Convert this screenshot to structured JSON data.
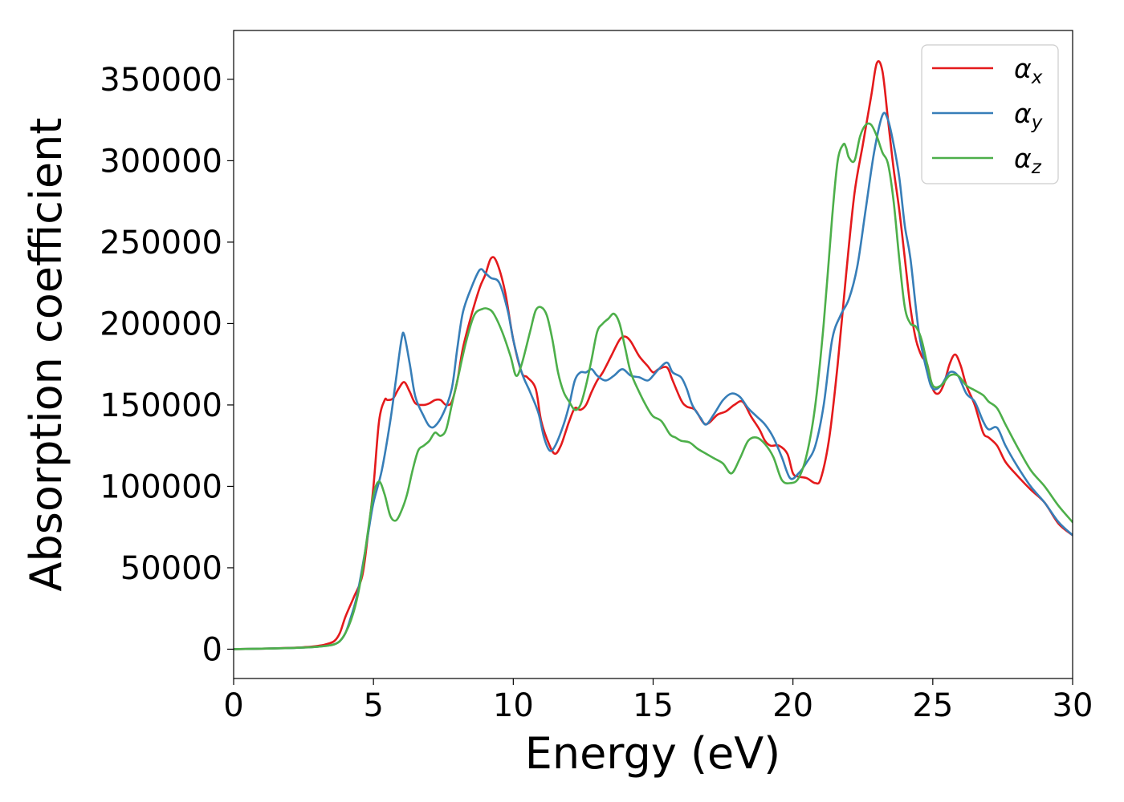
{
  "chart_data": {
    "type": "line",
    "xlabel": "Energy (eV)",
    "ylabel": "Absorption coefficient",
    "xlim": [
      0,
      30
    ],
    "ylim": [
      -18000,
      380000
    ],
    "xticks": [
      0,
      5,
      10,
      15,
      20,
      25,
      30
    ],
    "yticks": [
      0,
      50000,
      100000,
      150000,
      200000,
      250000,
      300000,
      350000
    ],
    "grid": false,
    "legend_position": "top-right",
    "series": [
      {
        "name": "α_x",
        "legend_base": "α",
        "legend_sub": "x",
        "color": "#e41a1c",
        "x": [
          0,
          1,
          2,
          2.5,
          3,
          3.3,
          3.6,
          3.8,
          4.0,
          4.3,
          4.6,
          4.8,
          5.0,
          5.2,
          5.4,
          5.5,
          5.7,
          5.9,
          6.1,
          6.3,
          6.5,
          6.8,
          7.0,
          7.2,
          7.4,
          7.6,
          7.8,
          8.0,
          8.2,
          8.5,
          8.8,
          9.0,
          9.2,
          9.4,
          9.7,
          10.0,
          10.3,
          10.5,
          10.8,
          11.0,
          11.3,
          11.5,
          11.7,
          11.9,
          12.0,
          12.2,
          12.4,
          12.6,
          12.8,
          13.0,
          13.2,
          13.5,
          13.8,
          14.0,
          14.2,
          14.5,
          14.8,
          15.0,
          15.2,
          15.5,
          15.7,
          16.0,
          16.2,
          16.5,
          16.8,
          17.0,
          17.3,
          17.6,
          17.9,
          18.2,
          18.5,
          18.8,
          19.0,
          19.2,
          19.5,
          19.8,
          20.0,
          20.2,
          20.5,
          20.8,
          21.0,
          21.3,
          21.6,
          21.9,
          22.2,
          22.5,
          22.8,
          23.0,
          23.2,
          23.4,
          23.6,
          23.8,
          24.0,
          24.2,
          24.4,
          24.6,
          24.8,
          25.0,
          25.2,
          25.4,
          25.6,
          25.8,
          26.0,
          26.2,
          26.5,
          26.8,
          27.0,
          27.3,
          27.6,
          28.0,
          28.5,
          29.0,
          29.5,
          30.0
        ],
        "values": [
          0,
          300,
          800,
          1200,
          2000,
          3000,
          5000,
          10000,
          20000,
          32000,
          45000,
          70000,
          100000,
          140000,
          153000,
          153000,
          154000,
          160000,
          164000,
          158000,
          151000,
          150000,
          151000,
          153000,
          153000,
          150000,
          152000,
          165000,
          185000,
          205000,
          222000,
          230000,
          240000,
          238000,
          220000,
          190000,
          170000,
          167000,
          160000,
          140000,
          125000,
          120000,
          125000,
          135000,
          140000,
          148000,
          147000,
          150000,
          158000,
          165000,
          170000,
          180000,
          190000,
          192000,
          189000,
          180000,
          174000,
          170000,
          172000,
          173000,
          165000,
          153000,
          149000,
          147000,
          139000,
          139000,
          144000,
          146000,
          150000,
          152000,
          143000,
          135000,
          128000,
          125000,
          125000,
          120000,
          108000,
          106000,
          105000,
          102000,
          105000,
          130000,
          175000,
          230000,
          280000,
          310000,
          340000,
          360000,
          355000,
          325000,
          295000,
          270000,
          240000,
          210000,
          190000,
          180000,
          175000,
          160000,
          157000,
          163000,
          175000,
          181000,
          174000,
          162000,
          150000,
          133000,
          130000,
          125000,
          115000,
          107000,
          98000,
          90000,
          77000,
          70000
        ]
      },
      {
        "name": "α_y",
        "legend_base": "α",
        "legend_sub": "y",
        "color": "#377eb8",
        "x": [
          0,
          1,
          2,
          2.5,
          3,
          3.3,
          3.6,
          3.8,
          4.0,
          4.2,
          4.4,
          4.6,
          4.8,
          5.0,
          5.3,
          5.6,
          5.8,
          6.0,
          6.1,
          6.3,
          6.5,
          6.8,
          7.0,
          7.2,
          7.5,
          7.8,
          8.0,
          8.2,
          8.5,
          8.8,
          9.0,
          9.2,
          9.5,
          9.8,
          10.0,
          10.3,
          10.6,
          10.9,
          11.1,
          11.3,
          11.5,
          11.8,
          12.0,
          12.2,
          12.4,
          12.6,
          12.8,
          13.0,
          13.3,
          13.6,
          13.9,
          14.2,
          14.5,
          14.8,
          15.0,
          15.2,
          15.5,
          15.7,
          16.0,
          16.2,
          16.4,
          16.7,
          16.9,
          17.2,
          17.5,
          17.8,
          18.1,
          18.4,
          18.7,
          19.0,
          19.3,
          19.6,
          19.9,
          20.2,
          20.5,
          20.8,
          21.1,
          21.4,
          21.7,
          22.0,
          22.3,
          22.6,
          22.9,
          23.2,
          23.4,
          23.6,
          23.8,
          24.0,
          24.2,
          24.5,
          24.8,
          25.0,
          25.3,
          25.6,
          25.9,
          26.2,
          26.5,
          26.8,
          27.0,
          27.3,
          27.6,
          28.0,
          28.5,
          29.0,
          29.5,
          30.0
        ],
        "values": [
          0,
          300,
          700,
          1000,
          1500,
          2000,
          3000,
          5000,
          10000,
          20000,
          32000,
          50000,
          70000,
          90000,
          110000,
          140000,
          165000,
          190000,
          193000,
          175000,
          155000,
          143000,
          137000,
          137000,
          145000,
          160000,
          185000,
          207000,
          222000,
          233000,
          231000,
          228000,
          225000,
          208000,
          190000,
          170000,
          158000,
          145000,
          130000,
          122000,
          125000,
          138000,
          150000,
          165000,
          170000,
          170000,
          172000,
          168000,
          165000,
          168000,
          172000,
          168000,
          167000,
          165000,
          168000,
          172000,
          176000,
          170000,
          167000,
          160000,
          150000,
          142000,
          138000,
          145000,
          153000,
          157000,
          155000,
          148000,
          143000,
          138000,
          130000,
          118000,
          105000,
          108000,
          115000,
          125000,
          150000,
          190000,
          205000,
          215000,
          235000,
          270000,
          305000,
          328000,
          325000,
          310000,
          290000,
          260000,
          240000,
          195000,
          170000,
          160000,
          162000,
          170000,
          168000,
          157000,
          152000,
          140000,
          135000,
          136000,
          125000,
          113000,
          100000,
          90000,
          78000,
          70000
        ]
      },
      {
        "name": "α_z",
        "legend_base": "α",
        "legend_sub": "z",
        "color": "#4daf4a",
        "x": [
          0,
          1,
          2,
          2.5,
          3,
          3.3,
          3.6,
          3.8,
          4.0,
          4.2,
          4.4,
          4.6,
          4.8,
          5.0,
          5.2,
          5.4,
          5.6,
          5.8,
          6.0,
          6.2,
          6.4,
          6.6,
          6.8,
          7.0,
          7.2,
          7.4,
          7.6,
          7.8,
          8.0,
          8.3,
          8.6,
          8.9,
          9.1,
          9.3,
          9.6,
          9.9,
          10.1,
          10.3,
          10.6,
          10.8,
          11.0,
          11.2,
          11.4,
          11.6,
          11.8,
          12.0,
          12.2,
          12.4,
          12.6,
          12.8,
          13.0,
          13.2,
          13.4,
          13.6,
          13.8,
          14.0,
          14.2,
          14.5,
          14.8,
          15.0,
          15.3,
          15.6,
          15.8,
          16.0,
          16.3,
          16.6,
          16.9,
          17.2,
          17.5,
          17.8,
          18.1,
          18.4,
          18.7,
          19.0,
          19.3,
          19.6,
          19.9,
          20.2,
          20.5,
          20.8,
          21.1,
          21.4,
          21.6,
          21.8,
          21.9,
          22.0,
          22.2,
          22.4,
          22.6,
          22.8,
          23.0,
          23.2,
          23.4,
          23.6,
          23.8,
          24.0,
          24.2,
          24.4,
          24.6,
          24.8,
          25.0,
          25.3,
          25.6,
          25.9,
          26.2,
          26.5,
          26.8,
          27.0,
          27.3,
          27.6,
          28.0,
          28.5,
          29.0,
          29.5,
          30.0
        ],
        "values": [
          0,
          300,
          700,
          1000,
          1500,
          2000,
          3000,
          5000,
          10000,
          18000,
          30000,
          48000,
          72000,
          95000,
          103000,
          95000,
          82000,
          79000,
          85000,
          95000,
          110000,
          122000,
          125000,
          128000,
          133000,
          131000,
          135000,
          150000,
          165000,
          188000,
          205000,
          209000,
          209000,
          206000,
          195000,
          180000,
          168000,
          175000,
          195000,
          208000,
          210000,
          205000,
          190000,
          170000,
          158000,
          152000,
          147000,
          150000,
          162000,
          178000,
          195000,
          200000,
          203000,
          206000,
          200000,
          185000,
          170000,
          158000,
          148000,
          143000,
          140000,
          132000,
          130000,
          128000,
          127000,
          123000,
          120000,
          117000,
          114000,
          108000,
          117000,
          128000,
          130000,
          126000,
          118000,
          104000,
          102000,
          105000,
          120000,
          150000,
          200000,
          265000,
          300000,
          310000,
          308000,
          302000,
          300000,
          315000,
          322000,
          322000,
          315000,
          305000,
          298000,
          275000,
          240000,
          210000,
          200000,
          198000,
          190000,
          175000,
          162000,
          162000,
          168000,
          168000,
          162000,
          159000,
          156000,
          152000,
          148000,
          138000,
          125000,
          110000,
          100000,
          88000,
          78000
        ]
      }
    ]
  }
}
